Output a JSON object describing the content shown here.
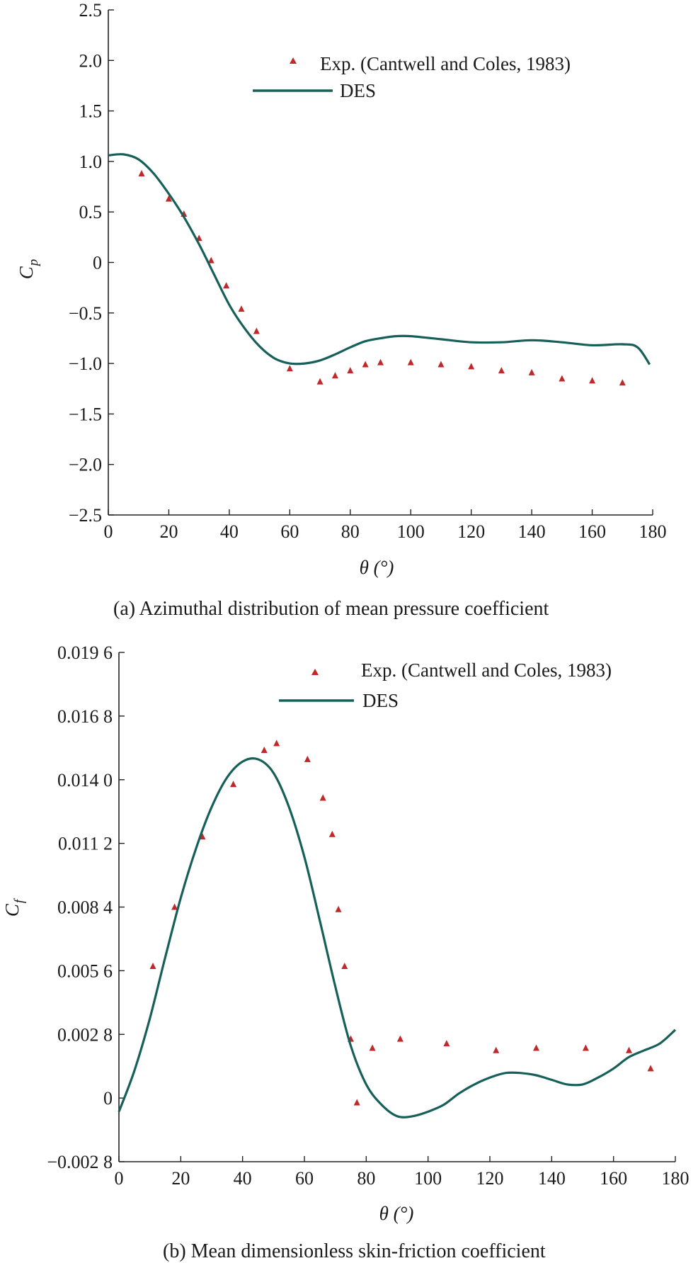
{
  "colors": {
    "series_line": "#17605a",
    "markers": "#c0282a",
    "axis": "#222222"
  },
  "chart_data": [
    {
      "type": "line",
      "caption": "(a) Azimuthal distribution of mean pressure coefficient",
      "xlabel": "θ (°)",
      "ylabel": "Cp",
      "xlim": [
        0,
        180
      ],
      "ylim": [
        -2.5,
        2.5
      ],
      "xticks": [
        0,
        20,
        40,
        60,
        80,
        100,
        120,
        140,
        160,
        180
      ],
      "xtick_labels": [
        "0",
        "20",
        "40",
        "60",
        "80",
        "100",
        "120",
        "140",
        "160",
        "180"
      ],
      "yticks": [
        2.5,
        2.0,
        1.5,
        1.0,
        0.5,
        0,
        -0.5,
        -1.0,
        -1.5,
        -2.0,
        -2.5
      ],
      "ytick_labels": [
        "2.5",
        "2.0",
        "1.5",
        "1.0",
        "0.5",
        "0",
        "−0.5",
        "−1.0",
        "−1.5",
        "−2.0",
        "−2.5"
      ],
      "legend_position": "top-right",
      "series": [
        {
          "name": "Exp. (Cantwell and Coles, 1983)",
          "style": "markers",
          "x": [
            11,
            20,
            25,
            30,
            34,
            39,
            44,
            49,
            60,
            70,
            75,
            80,
            85,
            90,
            100,
            110,
            120,
            130,
            140,
            150,
            160,
            170
          ],
          "y": [
            0.88,
            0.63,
            0.48,
            0.24,
            0.02,
            -0.23,
            -0.46,
            -0.68,
            -1.05,
            -1.18,
            -1.12,
            -1.07,
            -1.01,
            -0.99,
            -0.99,
            -1.01,
            -1.03,
            -1.07,
            -1.09,
            -1.15,
            -1.17,
            -1.19
          ]
        },
        {
          "name": "DES",
          "style": "line",
          "x": [
            0,
            5,
            10,
            15,
            20,
            25,
            30,
            35,
            40,
            45,
            50,
            55,
            60,
            65,
            70,
            75,
            80,
            85,
            90,
            95,
            100,
            110,
            120,
            130,
            140,
            150,
            160,
            170,
            175,
            179
          ],
          "y": [
            1.06,
            1.07,
            1.02,
            0.88,
            0.68,
            0.45,
            0.18,
            -0.12,
            -0.42,
            -0.65,
            -0.83,
            -0.95,
            -1.0,
            -1.0,
            -0.97,
            -0.91,
            -0.84,
            -0.78,
            -0.75,
            -0.73,
            -0.73,
            -0.76,
            -0.79,
            -0.79,
            -0.77,
            -0.79,
            -0.82,
            -0.81,
            -0.84,
            -1.01
          ]
        }
      ]
    },
    {
      "type": "line",
      "caption": "(b) Mean dimensionless skin-friction coefficient",
      "xlabel": "θ (°)",
      "ylabel": "Cf",
      "xlim": [
        0,
        180
      ],
      "ylim": [
        -0.0028,
        0.0196
      ],
      "xticks": [
        0,
        20,
        40,
        60,
        80,
        100,
        120,
        140,
        160,
        180
      ],
      "xtick_labels": [
        "0",
        "20",
        "40",
        "60",
        "80",
        "100",
        "120",
        "140",
        "160",
        "180"
      ],
      "yticks": [
        0.0196,
        0.0168,
        0.014,
        0.0112,
        0.0084,
        0.0056,
        0.0028,
        0,
        -0.0028
      ],
      "ytick_labels": [
        "0.019 6",
        "0.016 8",
        "0.014 0",
        "0.011 2",
        "0.008 4",
        "0.005 6",
        "0.002 8",
        "0",
        "−0.002 8"
      ],
      "legend_position": "top-right",
      "series": [
        {
          "name": "Exp. (Cantwell and Coles, 1983)",
          "style": "markers",
          "x": [
            11,
            18,
            27,
            37,
            47,
            51,
            61,
            66,
            69,
            71,
            73,
            75,
            77,
            82,
            91,
            106,
            122,
            135,
            151,
            165,
            172
          ],
          "y": [
            0.0058,
            0.0084,
            0.0115,
            0.0138,
            0.0153,
            0.0156,
            0.0149,
            0.0132,
            0.0116,
            0.0083,
            0.0058,
            0.0026,
            -0.0002,
            0.0022,
            0.0026,
            0.0024,
            0.0021,
            0.0022,
            0.0022,
            0.0021,
            0.0013
          ]
        },
        {
          "name": "DES",
          "style": "line",
          "x": [
            0,
            5,
            10,
            15,
            20,
            25,
            30,
            35,
            40,
            45,
            50,
            55,
            60,
            65,
            70,
            75,
            80,
            85,
            90,
            95,
            100,
            105,
            110,
            115,
            120,
            125,
            130,
            135,
            140,
            145,
            150,
            155,
            160,
            165,
            170,
            175,
            180
          ],
          "y": [
            -0.0006,
            0.0012,
            0.0035,
            0.0062,
            0.0088,
            0.011,
            0.0128,
            0.0141,
            0.0148,
            0.0149,
            0.0143,
            0.0128,
            0.0106,
            0.0078,
            0.0049,
            0.0023,
            0.0006,
            -0.0003,
            -0.0008,
            -0.0008,
            -0.0006,
            -0.0003,
            0.0002,
            0.0006,
            0.0009,
            0.0011,
            0.0011,
            0.001,
            0.0008,
            0.0006,
            0.0006,
            0.0009,
            0.0013,
            0.0018,
            0.0021,
            0.0024,
            0.003
          ]
        }
      ]
    }
  ]
}
